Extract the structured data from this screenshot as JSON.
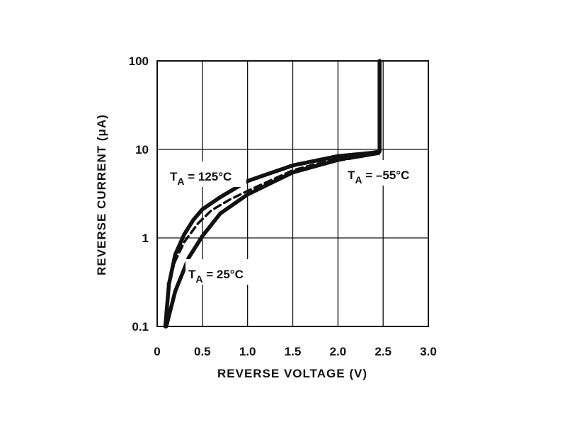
{
  "chart_data": {
    "type": "line",
    "xlabel": "REVERSE VOLTAGE (V)",
    "ylabel": "REVERSE CURRENT (μA)",
    "xlim": [
      0,
      3.0
    ],
    "ylim": [
      0.1,
      100
    ],
    "yscale": "log",
    "grid": true,
    "x_ticks": [
      "0",
      "0.5",
      "1.0",
      "1.5",
      "2.0",
      "2.5",
      "3.0"
    ],
    "x_tick_values": [
      0,
      0.5,
      1.0,
      1.5,
      2.0,
      2.5,
      3.0
    ],
    "y_ticks": [
      "0.1",
      "1",
      "10",
      "100"
    ],
    "y_tick_values": [
      0.1,
      1,
      10,
      100
    ],
    "series": [
      {
        "style": "solid",
        "x": [
          0.09,
          0.13,
          0.2,
          0.3,
          0.4,
          0.5,
          0.7,
          1.0,
          1.5,
          2.0,
          2.45,
          2.46,
          2.46
        ],
        "y": [
          0.1,
          0.3,
          0.65,
          1.1,
          1.6,
          2.1,
          2.9,
          4.4,
          6.6,
          8.4,
          9.3,
          9.5,
          100
        ]
      },
      {
        "style": "solid",
        "x": [
          0.1,
          0.2,
          0.35,
          0.5,
          0.7,
          1.0,
          1.5,
          2.0,
          2.45
        ],
        "y": [
          0.1,
          0.25,
          0.6,
          1.05,
          1.9,
          3.1,
          5.5,
          7.6,
          9.1
        ]
      },
      {
        "style": "dashed",
        "x": [
          0.12,
          0.2,
          0.3,
          0.45,
          0.6,
          0.8,
          1.0,
          1.5,
          2.0,
          2.45
        ],
        "y": [
          0.3,
          0.55,
          0.9,
          1.45,
          2.05,
          2.7,
          3.4,
          5.8,
          8.0,
          9.6
        ]
      }
    ],
    "annotations": [
      {
        "main": "T",
        "sub": "A",
        "rest": " = 125°C"
      },
      {
        "main": "T",
        "sub": "A",
        "rest": " = 25°C"
      },
      {
        "main": "T",
        "sub": "A",
        "rest": " = –55°C"
      }
    ]
  }
}
